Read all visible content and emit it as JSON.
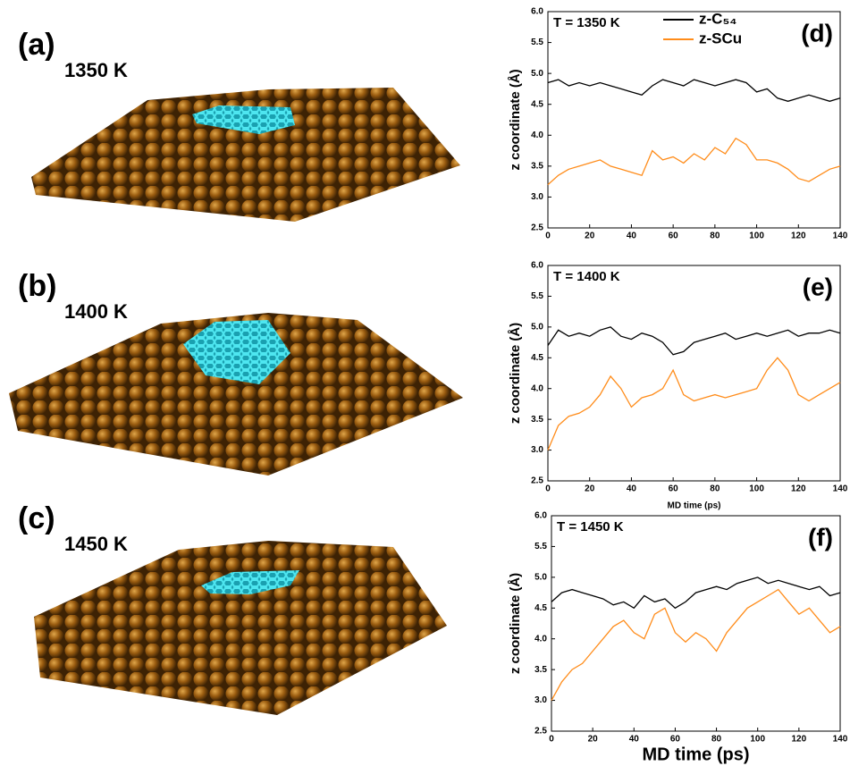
{
  "images": [
    {
      "label": "(a)",
      "temperature": "1350 K"
    },
    {
      "label": "(b)",
      "temperature": "1400 K"
    },
    {
      "label": "(c)",
      "temperature": "1450 K"
    }
  ],
  "chart_data": [
    {
      "type": "line",
      "panel": "(d)",
      "annotation": "T = 1350 K",
      "ylabel": "z coordinate (Å)",
      "legend": true,
      "xlim": [
        0,
        140
      ],
      "xticks": [
        0,
        20,
        40,
        60,
        80,
        100,
        120,
        140
      ],
      "ylim": [
        2.5,
        6
      ],
      "yticks": [
        2.5,
        {
          "value": 3,
          "label": "3.0"
        },
        3.5,
        {
          "value": 4,
          "label": "4.0"
        },
        4.5,
        {
          "value": 5,
          "label": "5.0"
        },
        5.5,
        {
          "value": 6,
          "label": "6.0"
        }
      ],
      "x": [
        0,
        5,
        10,
        15,
        20,
        25,
        30,
        35,
        40,
        45,
        50,
        55,
        60,
        65,
        70,
        75,
        80,
        85,
        90,
        95,
        100,
        105,
        110,
        115,
        120,
        125,
        130,
        135,
        140
      ],
      "series": [
        {
          "name": "z-C₅₄",
          "color": "#000000",
          "values": [
            4.85,
            4.9,
            4.8,
            4.85,
            4.8,
            4.85,
            4.8,
            4.75,
            4.7,
            4.65,
            4.8,
            4.9,
            4.85,
            4.8,
            4.9,
            4.85,
            4.8,
            4.85,
            4.9,
            4.85,
            4.7,
            4.75,
            4.6,
            4.55,
            4.6,
            4.65,
            4.6,
            4.55,
            4.6
          ]
        },
        {
          "name": "z-SCu",
          "color": "#ff8c1a",
          "values": [
            3.2,
            3.35,
            3.45,
            3.5,
            3.55,
            3.6,
            3.5,
            3.45,
            3.4,
            3.35,
            3.75,
            3.6,
            3.65,
            3.55,
            3.7,
            3.6,
            3.8,
            3.7,
            3.95,
            3.85,
            3.6,
            3.6,
            3.55,
            3.45,
            3.3,
            3.25,
            3.35,
            3.45,
            3.5
          ]
        }
      ]
    },
    {
      "type": "line",
      "panel": "(e)",
      "annotation": "T = 1400 K",
      "ylabel": "z coordinate (Å)",
      "xlabel": "MD time (ps)",
      "xlim": [
        0,
        140
      ],
      "xticks": [
        0,
        20,
        40,
        60,
        80,
        100,
        120,
        140
      ],
      "ylim": [
        2.5,
        6
      ],
      "yticks": [
        2.5,
        {
          "value": 3,
          "label": "3.0"
        },
        3.5,
        {
          "value": 4,
          "label": "4.0"
        },
        4.5,
        {
          "value": 5,
          "label": "5.0"
        },
        5.5,
        {
          "value": 6,
          "label": "6.0"
        }
      ],
      "x": [
        0,
        5,
        10,
        15,
        20,
        25,
        30,
        35,
        40,
        45,
        50,
        55,
        60,
        65,
        70,
        75,
        80,
        85,
        90,
        95,
        100,
        105,
        110,
        115,
        120,
        125,
        130,
        135,
        140
      ],
      "series": [
        {
          "color": "#000000",
          "values": [
            4.7,
            4.95,
            4.85,
            4.9,
            4.85,
            4.95,
            5.0,
            4.85,
            4.8,
            4.9,
            4.85,
            4.75,
            4.55,
            4.6,
            4.75,
            4.8,
            4.85,
            4.9,
            4.8,
            4.85,
            4.9,
            4.85,
            4.9,
            4.95,
            4.85,
            4.9,
            4.9,
            4.95,
            4.9
          ]
        },
        {
          "color": "#ff8c1a",
          "values": [
            3.0,
            3.4,
            3.55,
            3.6,
            3.7,
            3.9,
            4.2,
            4.0,
            3.7,
            3.85,
            3.9,
            4.0,
            4.3,
            3.9,
            3.8,
            3.85,
            3.9,
            3.85,
            3.9,
            3.95,
            4.0,
            4.3,
            4.5,
            4.3,
            3.9,
            3.8,
            3.9,
            4.0,
            4.1
          ]
        }
      ]
    },
    {
      "type": "line",
      "panel": "(f)",
      "annotation": "T = 1450 K",
      "ylabel": "z coordinate (Å)",
      "xlabel": "MD time (ps)",
      "xlim": [
        0,
        140
      ],
      "xticks": [
        0,
        20,
        40,
        60,
        80,
        100,
        120,
        140
      ],
      "ylim": [
        2.5,
        6
      ],
      "yticks": [
        2.5,
        {
          "value": 3,
          "label": "3.0"
        },
        3.5,
        {
          "value": 4,
          "label": "4.0"
        },
        4.5,
        {
          "value": 5,
          "label": "5.0"
        },
        5.5,
        {
          "value": 6,
          "label": "6.0"
        }
      ],
      "x": [
        0,
        5,
        10,
        15,
        20,
        25,
        30,
        35,
        40,
        45,
        50,
        55,
        60,
        65,
        70,
        75,
        80,
        85,
        90,
        95,
        100,
        105,
        110,
        115,
        120,
        125,
        130,
        135,
        140
      ],
      "series": [
        {
          "color": "#000000",
          "values": [
            4.6,
            4.75,
            4.8,
            4.75,
            4.7,
            4.65,
            4.55,
            4.6,
            4.5,
            4.7,
            4.6,
            4.65,
            4.5,
            4.6,
            4.75,
            4.8,
            4.85,
            4.8,
            4.9,
            4.95,
            5.0,
            4.9,
            4.95,
            4.9,
            4.85,
            4.8,
            4.85,
            4.7,
            4.75
          ]
        },
        {
          "color": "#ff8c1a",
          "values": [
            3.0,
            3.3,
            3.5,
            3.6,
            3.8,
            4.0,
            4.2,
            4.3,
            4.1,
            4.0,
            4.4,
            4.5,
            4.1,
            3.95,
            4.1,
            4.0,
            3.8,
            4.1,
            4.3,
            4.5,
            4.6,
            4.7,
            4.8,
            4.6,
            4.4,
            4.5,
            4.3,
            4.1,
            4.2
          ]
        }
      ]
    }
  ]
}
